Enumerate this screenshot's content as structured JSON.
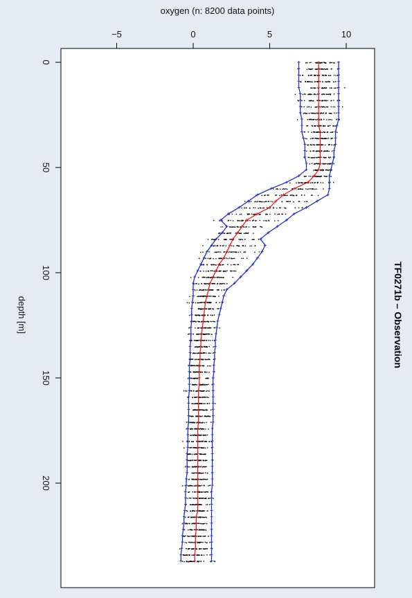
{
  "chart_data": {
    "type": "scatter",
    "title": "TF0271b – Observation",
    "xlabel": "oxygen (n: 8200 data points)",
    "ylabel": "depth [m]",
    "xlim": [
      -9,
      11
    ],
    "ylim": [
      0,
      240
    ],
    "x_ticks": [
      -5,
      0,
      5,
      10
    ],
    "y_ticks": [
      0,
      50,
      100,
      150,
      200
    ],
    "y_inverted": true,
    "orientation": "rotated 90° clockwise (depth runs horizontally, oxygen vertically)",
    "grid": false,
    "legend": "none",
    "colors": {
      "points": "#000000",
      "mean": "#e02020",
      "envelope": "#2030c0",
      "background": "#e6ebf3"
    },
    "depths": [
      0,
      3,
      6,
      9,
      12,
      15,
      18,
      21,
      24,
      27,
      30,
      33,
      36,
      39,
      42,
      45,
      48,
      51,
      54,
      57,
      60,
      63,
      66,
      69,
      72,
      75,
      78,
      81,
      84,
      87,
      90,
      93,
      96,
      99,
      102,
      105,
      108,
      111,
      114,
      117,
      120,
      123,
      126,
      129,
      132,
      135,
      138,
      141,
      144,
      147,
      150,
      153,
      156,
      159,
      162,
      165,
      168,
      171,
      174,
      177,
      180,
      183,
      186,
      189,
      192,
      195,
      198,
      201,
      204,
      207,
      210,
      213,
      216,
      219,
      222,
      225,
      228,
      231,
      234,
      237
    ],
    "series": [
      {
        "name": "mean",
        "values": [
          8.2,
          8.2,
          8.2,
          8.2,
          8.2,
          8.2,
          8.2,
          8.2,
          8.2,
          8.2,
          8.2,
          8.3,
          8.3,
          8.3,
          8.3,
          8.3,
          8.3,
          8.2,
          7.9,
          7.5,
          6.6,
          5.9,
          5.4,
          5.0,
          4.2,
          3.5,
          3.2,
          2.9,
          2.6,
          2.4,
          2.2,
          2.0,
          1.7,
          1.5,
          1.3,
          1.1,
          1.0,
          0.9,
          0.8,
          0.75,
          0.7,
          0.65,
          0.6,
          0.55,
          0.5,
          0.5,
          0.45,
          0.45,
          0.4,
          0.4,
          0.4,
          0.4,
          0.35,
          0.35,
          0.35,
          0.35,
          0.35,
          0.35,
          0.3,
          0.3,
          0.3,
          0.3,
          0.3,
          0.3,
          0.3,
          0.3,
          0.3,
          0.3,
          0.3,
          0.3,
          0.3,
          0.3,
          0.2,
          0.2,
          0.2,
          0.15,
          0.15,
          0.15,
          0.1,
          0.1
        ]
      },
      {
        "name": "upper",
        "values": [
          9.5,
          9.5,
          9.5,
          9.5,
          9.5,
          9.5,
          9.5,
          9.5,
          9.5,
          9.5,
          9.4,
          9.3,
          9.3,
          9.3,
          9.2,
          9.2,
          9.1,
          9.0,
          8.9,
          8.9,
          8.9,
          8.8,
          8.1,
          7.4,
          6.6,
          6.1,
          5.5,
          4.9,
          4.4,
          4.7,
          4.5,
          4.2,
          3.9,
          3.5,
          3.1,
          2.7,
          2.2,
          2.0,
          1.9,
          1.8,
          1.7,
          1.6,
          1.55,
          1.5,
          1.45,
          1.45,
          1.4,
          1.4,
          1.35,
          1.35,
          1.3,
          1.3,
          1.3,
          1.3,
          1.3,
          1.3,
          1.3,
          1.3,
          1.25,
          1.25,
          1.25,
          1.25,
          1.25,
          1.25,
          1.25,
          1.25,
          1.25,
          1.25,
          1.2,
          1.2,
          1.2,
          1.2,
          1.2,
          1.2,
          1.2,
          1.2,
          1.2,
          1.2,
          1.2,
          1.2
        ]
      },
      {
        "name": "lower",
        "values": [
          6.9,
          6.9,
          6.9,
          6.9,
          6.9,
          7.0,
          7.0,
          7.0,
          7.0,
          7.1,
          7.1,
          7.1,
          7.2,
          7.3,
          7.3,
          7.3,
          7.4,
          7.4,
          6.9,
          6.1,
          5.1,
          4.2,
          3.6,
          3.0,
          2.3,
          1.8,
          2.2,
          1.9,
          1.5,
          1.2,
          0.9,
          0.7,
          0.5,
          0.3,
          0.1,
          0.0,
          0.0,
          0.0,
          -0.05,
          -0.1,
          -0.1,
          -0.1,
          -0.15,
          -0.15,
          -0.15,
          -0.2,
          -0.2,
          -0.2,
          -0.25,
          -0.25,
          -0.25,
          -0.25,
          -0.25,
          -0.3,
          -0.3,
          -0.3,
          -0.3,
          -0.3,
          -0.35,
          -0.35,
          -0.35,
          -0.35,
          -0.4,
          -0.4,
          -0.4,
          -0.4,
          -0.45,
          -0.45,
          -0.5,
          -0.5,
          -0.5,
          -0.55,
          -0.6,
          -0.6,
          -0.65,
          -0.7,
          -0.7,
          -0.75,
          -0.8,
          -0.8
        ]
      }
    ],
    "scatter_points": "raw observations plotted as small black dots around each depth level"
  }
}
